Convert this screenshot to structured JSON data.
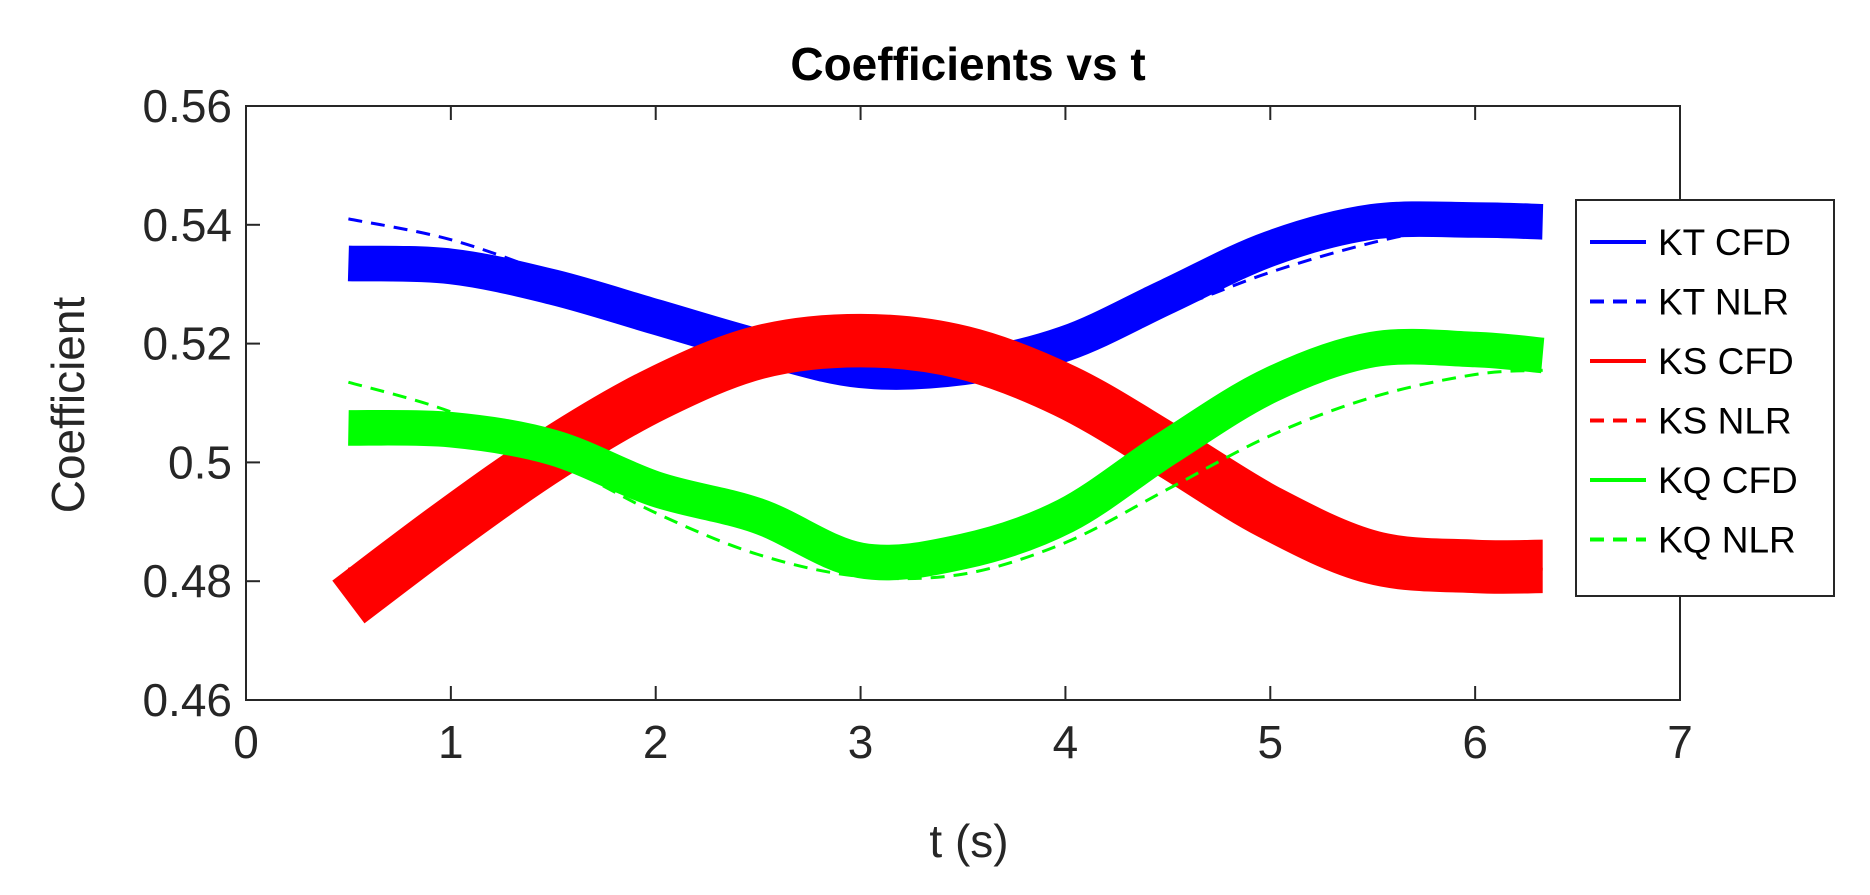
{
  "chart_data": {
    "type": "line",
    "title": "Coefficients vs t",
    "xlabel": "t (s)",
    "ylabel": "Coefficient",
    "xlim": [
      0,
      7
    ],
    "ylim": [
      0.46,
      0.56
    ],
    "xticks": [
      0,
      1,
      2,
      3,
      4,
      5,
      6,
      7
    ],
    "xtick_labels": [
      "0",
      "1",
      "2",
      "3",
      "4",
      "5",
      "6",
      "7"
    ],
    "yticks": [
      0.46,
      0.48,
      0.5,
      0.52,
      0.54,
      0.56
    ],
    "ytick_labels": [
      "0.46",
      "0.48",
      "0.5",
      "0.52",
      "0.54",
      "0.56"
    ],
    "grid": false,
    "legend_position": "right",
    "series": [
      {
        "name": "KT CFD",
        "color": "#0000ff",
        "style": "solid",
        "band": 0.003,
        "x": [
          0.5,
          1.0,
          1.5,
          2.0,
          2.5,
          3.0,
          3.5,
          4.0,
          4.5,
          5.0,
          5.5,
          6.0,
          6.33
        ],
        "y": [
          0.5335,
          0.533,
          0.5295,
          0.5245,
          0.5195,
          0.5155,
          0.516,
          0.52,
          0.528,
          0.536,
          0.5405,
          0.5408,
          0.5405
        ]
      },
      {
        "name": "KT NLR",
        "color": "#0000ff",
        "style": "dashed",
        "band": 0,
        "x": [
          0.5,
          1.0,
          1.5,
          2.0,
          2.5,
          3.0,
          3.5,
          4.0,
          4.5,
          5.0,
          5.5,
          6.0,
          6.33
        ],
        "y": [
          0.541,
          0.5375,
          0.5315,
          0.5245,
          0.519,
          0.516,
          0.5165,
          0.5195,
          0.5255,
          0.532,
          0.537,
          0.5405,
          0.542
        ]
      },
      {
        "name": "KS CFD",
        "color": "#ff0000",
        "style": "solid",
        "band": 0.0045,
        "x": [
          0.5,
          1.0,
          1.5,
          2.0,
          2.5,
          3.0,
          3.5,
          4.0,
          4.5,
          5.0,
          5.5,
          6.0,
          6.33
        ],
        "y": [
          0.4765,
          0.4895,
          0.5015,
          0.5115,
          0.5185,
          0.5205,
          0.5185,
          0.512,
          0.502,
          0.4915,
          0.484,
          0.4825,
          0.4825
        ]
      },
      {
        "name": "KS NLR",
        "color": "#ff0000",
        "style": "dashed",
        "band": 0,
        "x": [
          0.5,
          1.0,
          1.5,
          2.0,
          2.5,
          3.0,
          3.5,
          4.0,
          4.5,
          5.0,
          5.5,
          6.0,
          6.33
        ],
        "y": [
          0.482,
          0.488,
          0.4985,
          0.5085,
          0.5165,
          0.5205,
          0.5195,
          0.5135,
          0.5045,
          0.4945,
          0.4865,
          0.4825,
          0.482
        ]
      },
      {
        "name": "KQ CFD",
        "color": "#00ff00",
        "style": "solid",
        "band": 0.003,
        "x": [
          0.5,
          1.0,
          1.5,
          2.0,
          2.5,
          3.0,
          3.5,
          4.0,
          4.5,
          5.0,
          5.5,
          6.0,
          6.33
        ],
        "y": [
          0.5058,
          0.5055,
          0.5025,
          0.4955,
          0.491,
          0.4835,
          0.485,
          0.491,
          0.5025,
          0.513,
          0.519,
          0.519,
          0.518
        ]
      },
      {
        "name": "KQ NLR",
        "color": "#00ff00",
        "style": "dashed",
        "band": 0,
        "x": [
          0.5,
          1.0,
          1.5,
          2.0,
          2.5,
          3.0,
          3.5,
          4.0,
          4.5,
          5.0,
          5.5,
          6.0,
          6.33
        ],
        "y": [
          0.5135,
          0.5085,
          0.5005,
          0.4915,
          0.4845,
          0.4808,
          0.4812,
          0.4865,
          0.4955,
          0.5045,
          0.511,
          0.5148,
          0.5155
        ]
      }
    ]
  }
}
